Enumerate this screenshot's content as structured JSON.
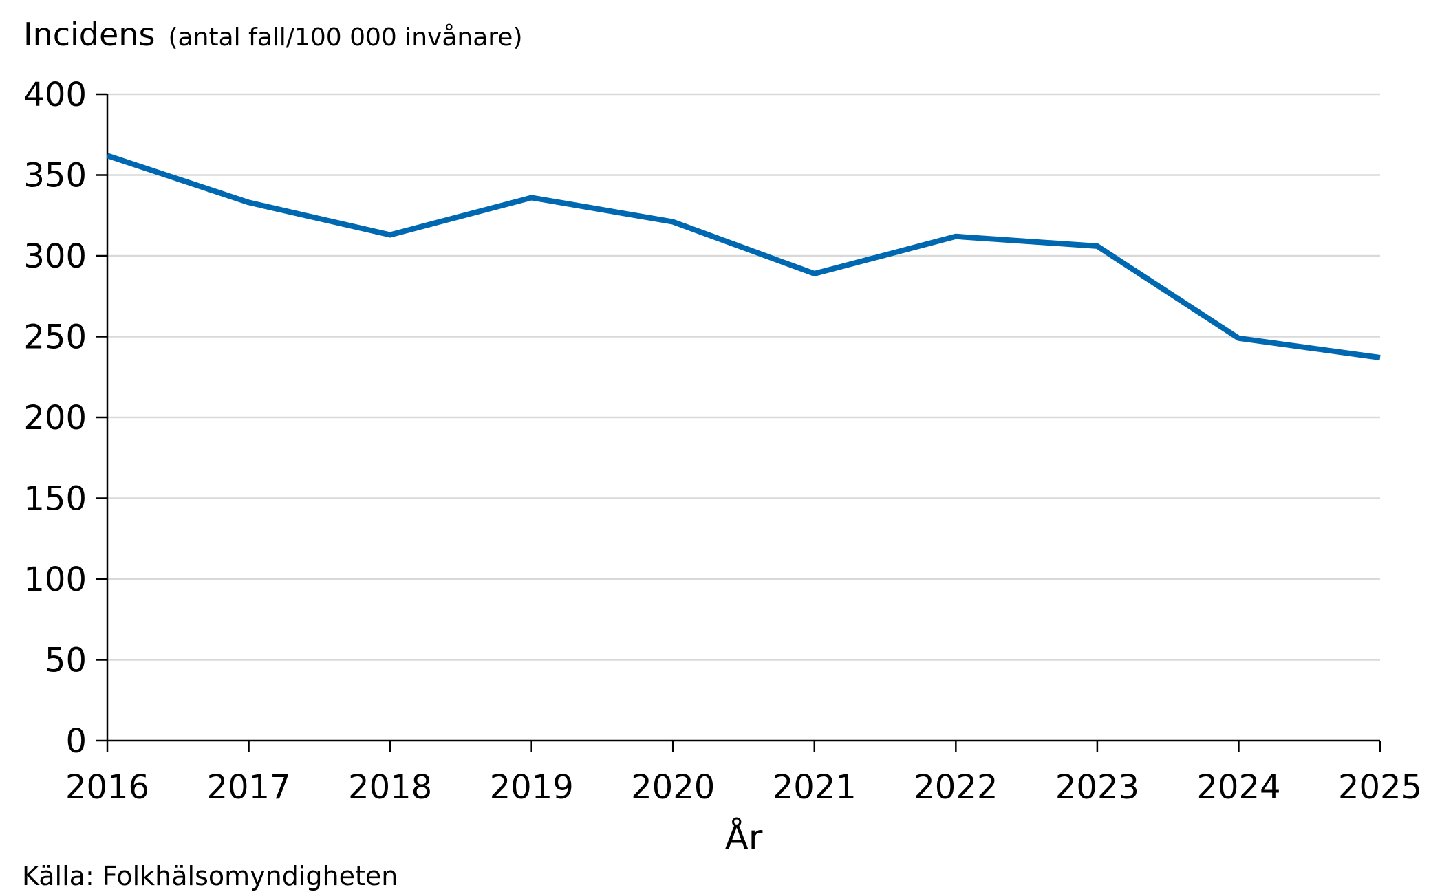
{
  "chart_data": {
    "type": "line",
    "ylabel": "Incidens",
    "ylabel_unit": "(antal fall/100 000 invånare)",
    "xlabel": "År",
    "source": "Källa: Folkhälsomyndigheten",
    "x": [
      2016,
      2017,
      2018,
      2019,
      2020,
      2021,
      2022,
      2023,
      2024,
      2025
    ],
    "series": [
      {
        "values": [
          362,
          333,
          313,
          336,
          321,
          289,
          312,
          306,
          249,
          237
        ],
        "color": "#0068B0"
      }
    ],
    "xlim": [
      2016,
      2025
    ],
    "ylim": [
      0,
      400
    ],
    "yticks": [
      0,
      50,
      100,
      150,
      200,
      250,
      300,
      350,
      400
    ],
    "grid": true,
    "legend": "none"
  }
}
